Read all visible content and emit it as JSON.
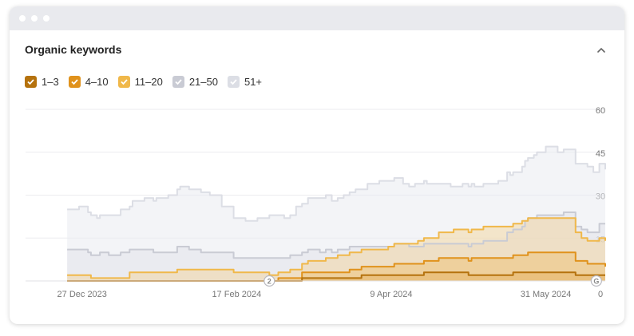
{
  "window": {
    "dots": 3
  },
  "widget": {
    "title": "Organic keywords",
    "collapse_icon": "chevron-up-icon"
  },
  "legend": [
    {
      "label": "1–3",
      "color": "#b5720d",
      "checked": true
    },
    {
      "label": "4–10",
      "color": "#e0921c",
      "checked": true
    },
    {
      "label": "11–20",
      "color": "#f0b84a",
      "checked": true
    },
    {
      "label": "21–50",
      "color": "#c9cbd4",
      "checked": true
    },
    {
      "label": "51+",
      "color": "#dcdee5",
      "checked": true
    }
  ],
  "chart_data": {
    "type": "area",
    "stacked": true,
    "title": "",
    "xlabel": "",
    "ylabel": "",
    "ylim": [
      0,
      60
    ],
    "y_ticks": [
      0,
      15,
      30,
      45,
      60
    ],
    "y_axis_position": "right",
    "grid": true,
    "x_range": [
      "2023-12-08",
      "2024-06-20"
    ],
    "x_ticks": [
      {
        "date": "2023-12-27",
        "label": "27 Dec 2023"
      },
      {
        "date": "2024-02-17",
        "label": "17 Feb 2024"
      },
      {
        "date": "2024-04-09",
        "label": "9 Apr 2024"
      },
      {
        "date": "2024-05-31",
        "label": "31 May 2024"
      }
    ],
    "series": [
      {
        "name": "1–3",
        "color": "#b5720d",
        "points": [
          [
            "2023-12-22",
            0
          ],
          [
            "2024-03-05",
            0
          ],
          [
            "2024-03-10",
            1
          ],
          [
            "2024-03-25",
            1
          ],
          [
            "2024-03-30",
            2
          ],
          [
            "2024-04-15",
            2
          ],
          [
            "2024-04-20",
            3
          ],
          [
            "2024-05-01",
            3
          ],
          [
            "2024-05-05",
            2
          ],
          [
            "2024-05-15",
            2
          ],
          [
            "2024-05-20",
            3
          ],
          [
            "2024-06-05",
            3
          ],
          [
            "2024-06-10",
            2
          ],
          [
            "2024-06-20",
            2
          ]
        ]
      },
      {
        "name": "4–10",
        "color": "#e0921c",
        "points": [
          [
            "2023-12-22",
            0
          ],
          [
            "2024-02-28",
            0
          ],
          [
            "2024-03-02",
            1
          ],
          [
            "2024-03-10",
            2
          ],
          [
            "2024-03-22",
            2
          ],
          [
            "2024-03-26",
            3
          ],
          [
            "2024-04-05",
            3
          ],
          [
            "2024-04-10",
            4
          ],
          [
            "2024-04-20",
            4
          ],
          [
            "2024-04-25",
            5
          ],
          [
            "2024-05-02",
            5
          ],
          [
            "2024-05-06",
            6
          ],
          [
            "2024-05-20",
            6
          ],
          [
            "2024-05-25",
            7
          ],
          [
            "2024-06-05",
            7
          ],
          [
            "2024-06-10",
            5
          ],
          [
            "2024-06-14",
            4
          ],
          [
            "2024-06-20",
            3
          ]
        ]
      },
      {
        "name": "11–20",
        "color": "#f0b84a",
        "points": [
          [
            "2023-12-22",
            2
          ],
          [
            "2023-12-28",
            2
          ],
          [
            "2023-12-30",
            1
          ],
          [
            "2024-01-08",
            1
          ],
          [
            "2024-01-12",
            3
          ],
          [
            "2024-01-25",
            3
          ],
          [
            "2024-01-28",
            4
          ],
          [
            "2024-02-12",
            4
          ],
          [
            "2024-02-16",
            3
          ],
          [
            "2024-02-24",
            3
          ],
          [
            "2024-02-28",
            2
          ],
          [
            "2024-03-02",
            2
          ],
          [
            "2024-03-06",
            3
          ],
          [
            "2024-03-12",
            4
          ],
          [
            "2024-03-18",
            5
          ],
          [
            "2024-03-22",
            6
          ],
          [
            "2024-04-05",
            6
          ],
          [
            "2024-04-08",
            7
          ],
          [
            "2024-04-15",
            7
          ],
          [
            "2024-04-18",
            8
          ],
          [
            "2024-04-25",
            9
          ],
          [
            "2024-04-30",
            10
          ],
          [
            "2024-05-06",
            10
          ],
          [
            "2024-05-10",
            11
          ],
          [
            "2024-05-20",
            11
          ],
          [
            "2024-05-23",
            12
          ],
          [
            "2024-06-06",
            12
          ],
          [
            "2024-06-10",
            10
          ],
          [
            "2024-06-12",
            8
          ],
          [
            "2024-06-15",
            8
          ],
          [
            "2024-06-18",
            9
          ],
          [
            "2024-06-20",
            9
          ]
        ]
      },
      {
        "name": "21–50",
        "color": "#c9cbd4",
        "points": [
          [
            "2023-12-22",
            9
          ],
          [
            "2023-12-26",
            9
          ],
          [
            "2023-12-29",
            8
          ],
          [
            "2024-01-02",
            9
          ],
          [
            "2024-01-05",
            8
          ],
          [
            "2024-01-09",
            9
          ],
          [
            "2024-01-12",
            8
          ],
          [
            "2024-01-16",
            8
          ],
          [
            "2024-01-20",
            7
          ],
          [
            "2024-01-24",
            7
          ],
          [
            "2024-01-28",
            8
          ],
          [
            "2024-02-01",
            7
          ],
          [
            "2024-02-05",
            6
          ],
          [
            "2024-02-12",
            6
          ],
          [
            "2024-02-16",
            5
          ],
          [
            "2024-02-24",
            5
          ],
          [
            "2024-02-28",
            6
          ],
          [
            "2024-03-02",
            5
          ],
          [
            "2024-03-06",
            5
          ],
          [
            "2024-03-10",
            4
          ],
          [
            "2024-03-16",
            3
          ],
          [
            "2024-03-20",
            2
          ],
          [
            "2024-03-26",
            2
          ],
          [
            "2024-03-30",
            1
          ],
          [
            "2024-04-05",
            1
          ],
          [
            "2024-04-08",
            0
          ],
          [
            "2024-04-15",
            -1
          ],
          [
            "2024-04-18",
            -2
          ],
          [
            "2024-04-25",
            -4
          ],
          [
            "2024-04-30",
            -5
          ],
          [
            "2024-05-08",
            -5
          ],
          [
            "2024-05-12",
            -5
          ],
          [
            "2024-05-18",
            -2
          ],
          [
            "2024-05-24",
            0
          ],
          [
            "2024-05-28",
            1
          ],
          [
            "2024-06-04",
            1
          ],
          [
            "2024-06-06",
            2
          ],
          [
            "2024-06-12",
            3
          ],
          [
            "2024-06-18",
            5
          ],
          [
            "2024-06-20",
            6
          ]
        ]
      },
      {
        "name": "51+",
        "color": "#dcdee5",
        "points": [
          [
            "2023-12-22",
            14
          ],
          [
            "2023-12-26",
            15
          ],
          [
            "2023-12-29",
            14
          ],
          [
            "2024-01-01",
            13
          ],
          [
            "2024-01-05",
            14
          ],
          [
            "2024-01-09",
            15
          ],
          [
            "2024-01-13",
            17
          ],
          [
            "2024-01-17",
            18
          ],
          [
            "2024-01-21",
            19
          ],
          [
            "2024-01-25",
            20
          ],
          [
            "2024-01-29",
            21
          ],
          [
            "2024-02-03",
            21
          ],
          [
            "2024-02-08",
            20
          ],
          [
            "2024-02-12",
            16
          ],
          [
            "2024-02-16",
            14
          ],
          [
            "2024-02-20",
            13
          ],
          [
            "2024-02-24",
            14
          ],
          [
            "2024-02-28",
            15
          ],
          [
            "2024-03-04",
            14
          ],
          [
            "2024-03-08",
            17
          ],
          [
            "2024-03-12",
            18
          ],
          [
            "2024-03-16",
            19
          ],
          [
            "2024-03-20",
            18
          ],
          [
            "2024-03-24",
            19
          ],
          [
            "2024-03-28",
            20
          ],
          [
            "2024-04-01",
            22
          ],
          [
            "2024-04-05",
            23
          ],
          [
            "2024-04-09",
            23
          ],
          [
            "2024-04-13",
            21
          ],
          [
            "2024-04-17",
            22
          ],
          [
            "2024-04-21",
            21
          ],
          [
            "2024-04-25",
            21
          ],
          [
            "2024-04-29",
            20
          ],
          [
            "2024-05-03",
            21
          ],
          [
            "2024-05-07",
            20
          ],
          [
            "2024-05-11",
            20
          ],
          [
            "2024-05-15",
            21
          ],
          [
            "2024-05-19",
            20
          ],
          [
            "2024-05-23",
            21
          ],
          [
            "2024-05-27",
            22
          ],
          [
            "2024-05-31",
            24
          ],
          [
            "2024-06-04",
            22
          ],
          [
            "2024-06-08",
            22
          ],
          [
            "2024-06-12",
            23
          ],
          [
            "2024-06-16",
            21
          ],
          [
            "2024-06-20",
            19
          ]
        ]
      }
    ],
    "annotations": [
      {
        "date": "2024-02-28",
        "label": "2",
        "shape": "circle"
      },
      {
        "date": "2024-06-17",
        "label": "G",
        "shape": "circle"
      }
    ]
  }
}
